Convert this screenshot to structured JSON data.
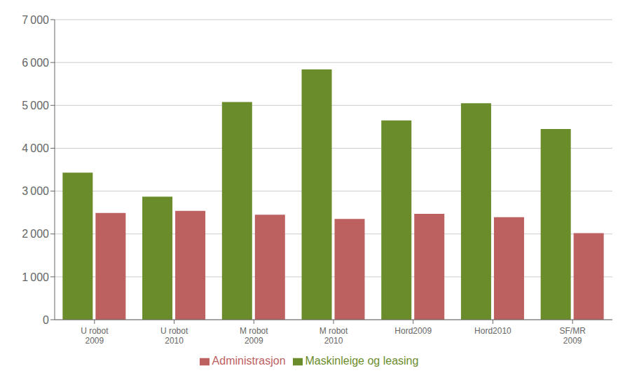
{
  "chart_data": {
    "type": "bar",
    "categories": [
      "U robot\n2009",
      "U robot\n2010",
      "M robot\n2009",
      "M robot\n2010",
      "Hord2009",
      "Hord2010",
      "SF/MR\n2009"
    ],
    "series": [
      {
        "name": "Maskinleige og leasing",
        "color": "#6B8C2A",
        "values": [
          3430,
          2870,
          5080,
          5840,
          4650,
          5050,
          4450
        ]
      },
      {
        "name": "Administrasjon",
        "color": "#BC6060",
        "values": [
          2490,
          2540,
          2450,
          2350,
          2470,
          2390,
          2020
        ]
      }
    ],
    "ylim": [
      0,
      7000
    ],
    "yticks": [
      0,
      {
        "value": 1000,
        "label": "1 000"
      },
      {
        "value": 2000,
        "label": "2 000"
      },
      {
        "value": 3000,
        "label": "3 000"
      },
      {
        "value": 4000,
        "label": "4 000"
      },
      {
        "value": 5000,
        "label": "5 000"
      },
      {
        "value": 6000,
        "label": "6 000"
      },
      {
        "value": 7000,
        "label": "7 000"
      }
    ],
    "grid": true,
    "legend": "bottom"
  }
}
